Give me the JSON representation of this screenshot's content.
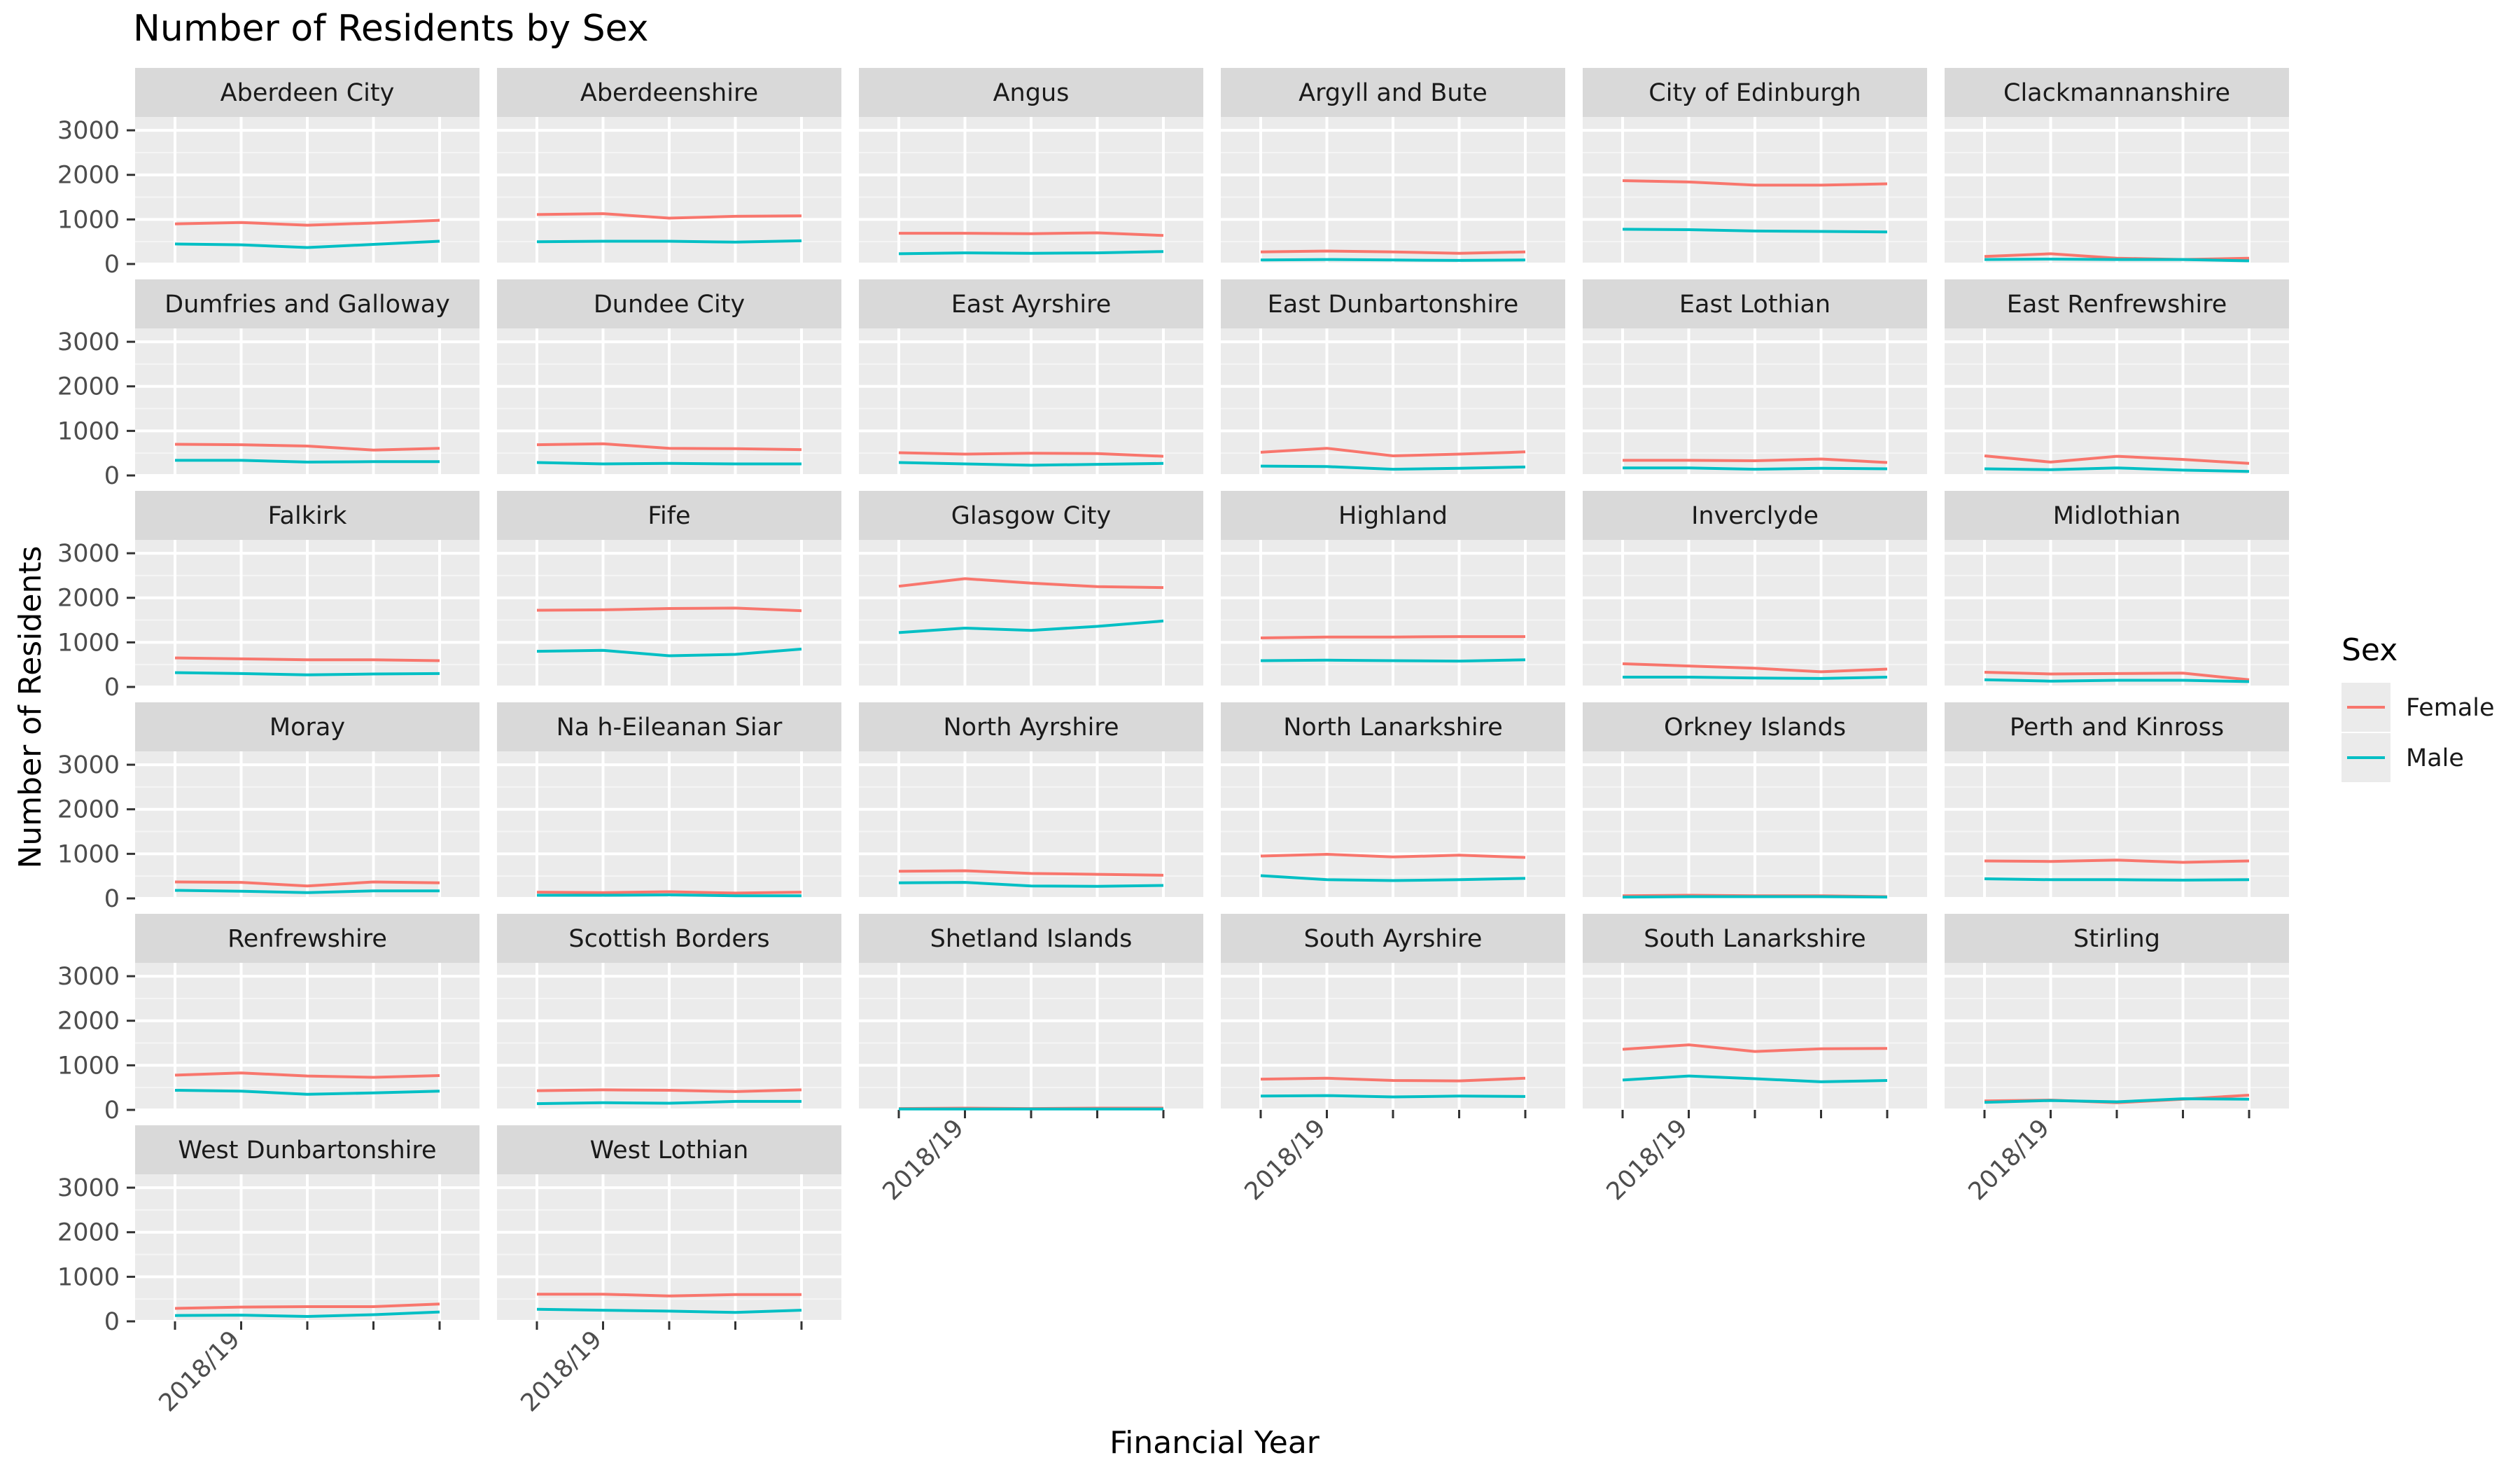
{
  "chart_data": {
    "type": "line",
    "title": "Number of Residents by Sex",
    "xlabel": "Financial Year",
    "ylabel": "Number of Residents",
    "ylim": [
      0,
      3300
    ],
    "y_ticks": [
      0,
      1000,
      2000,
      3000
    ],
    "x_ticks_labeled": {
      "2": "2018/19"
    },
    "x_points": 5,
    "grid": true,
    "legend": {
      "title": "Sex",
      "placement": "right",
      "entries": [
        {
          "name": "Female",
          "color": "#F8766D"
        },
        {
          "name": "Male",
          "color": "#00BFC4"
        }
      ]
    },
    "panels": [
      {
        "name": "Aberdeen City",
        "female": [
          900,
          930,
          870,
          920,
          980
        ],
        "male": [
          450,
          430,
          370,
          440,
          510
        ]
      },
      {
        "name": "Aberdeenshire",
        "female": [
          1110,
          1130,
          1030,
          1070,
          1080
        ],
        "male": [
          500,
          510,
          510,
          490,
          520
        ]
      },
      {
        "name": "Angus",
        "female": [
          690,
          690,
          680,
          700,
          640
        ],
        "male": [
          230,
          250,
          240,
          250,
          280
        ]
      },
      {
        "name": "Argyll and Bute",
        "female": [
          270,
          290,
          270,
          240,
          270
        ],
        "male": [
          90,
          100,
          90,
          80,
          90
        ]
      },
      {
        "name": "City of Edinburgh",
        "female": [
          1870,
          1840,
          1770,
          1770,
          1800
        ],
        "male": [
          780,
          770,
          740,
          730,
          720
        ]
      },
      {
        "name": "Clackmannanshire",
        "female": [
          170,
          230,
          130,
          100,
          130
        ],
        "male": [
          100,
          110,
          100,
          100,
          70
        ]
      },
      {
        "name": "Dumfries and Galloway",
        "female": [
          700,
          690,
          660,
          570,
          610
        ],
        "male": [
          340,
          340,
          300,
          310,
          310
        ]
      },
      {
        "name": "Dundee City",
        "female": [
          690,
          710,
          610,
          600,
          580
        ],
        "male": [
          290,
          260,
          270,
          260,
          260
        ]
      },
      {
        "name": "East Ayrshire",
        "female": [
          510,
          480,
          500,
          490,
          430
        ],
        "male": [
          290,
          260,
          230,
          250,
          270
        ]
      },
      {
        "name": "East Dunbartonshire",
        "female": [
          520,
          610,
          440,
          480,
          530
        ],
        "male": [
          210,
          200,
          140,
          160,
          190
        ]
      },
      {
        "name": "East Lothian",
        "female": [
          340,
          340,
          330,
          370,
          290
        ],
        "male": [
          170,
          170,
          140,
          160,
          150
        ]
      },
      {
        "name": "East Renfrewshire",
        "female": [
          440,
          300,
          430,
          360,
          270
        ],
        "male": [
          150,
          130,
          170,
          120,
          90
        ]
      },
      {
        "name": "Falkirk",
        "female": [
          650,
          630,
          610,
          610,
          590
        ],
        "male": [
          320,
          300,
          270,
          290,
          300
        ]
      },
      {
        "name": "Fife",
        "female": [
          1720,
          1730,
          1760,
          1770,
          1710
        ],
        "male": [
          800,
          820,
          700,
          730,
          850
        ]
      },
      {
        "name": "Glasgow City",
        "female": [
          2260,
          2430,
          2330,
          2250,
          2230
        ],
        "male": [
          1220,
          1320,
          1270,
          1360,
          1480
        ]
      },
      {
        "name": "Highland",
        "female": [
          1100,
          1120,
          1120,
          1130,
          1130
        ],
        "male": [
          590,
          600,
          590,
          580,
          610
        ]
      },
      {
        "name": "Inverclyde",
        "female": [
          520,
          470,
          420,
          340,
          400
        ],
        "male": [
          220,
          220,
          200,
          190,
          220
        ]
      },
      {
        "name": "Midlothian",
        "female": [
          330,
          290,
          300,
          310,
          160
        ],
        "male": [
          160,
          130,
          150,
          150,
          120
        ]
      },
      {
        "name": "Moray",
        "female": [
          370,
          360,
          280,
          370,
          350
        ],
        "male": [
          180,
          160,
          130,
          170,
          170
        ]
      },
      {
        "name": "Na h-Eileanan Siar",
        "female": [
          140,
          130,
          150,
          120,
          140
        ],
        "male": [
          70,
          70,
          80,
          60,
          60
        ]
      },
      {
        "name": "North Ayrshire",
        "female": [
          610,
          620,
          560,
          540,
          520
        ],
        "male": [
          350,
          360,
          280,
          270,
          290
        ]
      },
      {
        "name": "North Lanarkshire",
        "female": [
          950,
          990,
          930,
          970,
          920
        ],
        "male": [
          510,
          420,
          400,
          420,
          450
        ]
      },
      {
        "name": "Orkney Islands",
        "female": [
          60,
          70,
          60,
          60,
          40
        ],
        "male": [
          30,
          40,
          40,
          40,
          30
        ]
      },
      {
        "name": "Perth and Kinross",
        "female": [
          840,
          830,
          860,
          810,
          840
        ],
        "male": [
          440,
          420,
          420,
          410,
          420
        ]
      },
      {
        "name": "Renfrewshire",
        "female": [
          780,
          830,
          760,
          730,
          770
        ],
        "male": [
          440,
          420,
          350,
          380,
          420
        ]
      },
      {
        "name": "Scottish Borders",
        "female": [
          430,
          450,
          440,
          410,
          450
        ],
        "male": [
          140,
          160,
          150,
          190,
          190
        ]
      },
      {
        "name": "Shetland Islands",
        "female": [
          30,
          40,
          30,
          40,
          40
        ],
        "male": [
          20,
          20,
          20,
          20,
          20
        ]
      },
      {
        "name": "South Ayrshire",
        "female": [
          690,
          710,
          660,
          650,
          710
        ],
        "male": [
          310,
          320,
          290,
          310,
          300
        ]
      },
      {
        "name": "South Lanarkshire",
        "female": [
          1360,
          1460,
          1310,
          1370,
          1380
        ],
        "male": [
          670,
          760,
          700,
          630,
          660
        ]
      },
      {
        "name": "Stirling",
        "female": [
          200,
          220,
          160,
          240,
          330
        ],
        "male": [
          170,
          210,
          180,
          250,
          240
        ]
      },
      {
        "name": "West Dunbartonshire",
        "female": [
          290,
          320,
          330,
          330,
          390
        ],
        "male": [
          130,
          140,
          110,
          150,
          210
        ]
      },
      {
        "name": "West Lothian",
        "female": [
          610,
          610,
          570,
          600,
          600
        ],
        "male": [
          270,
          250,
          230,
          200,
          250
        ]
      }
    ]
  }
}
